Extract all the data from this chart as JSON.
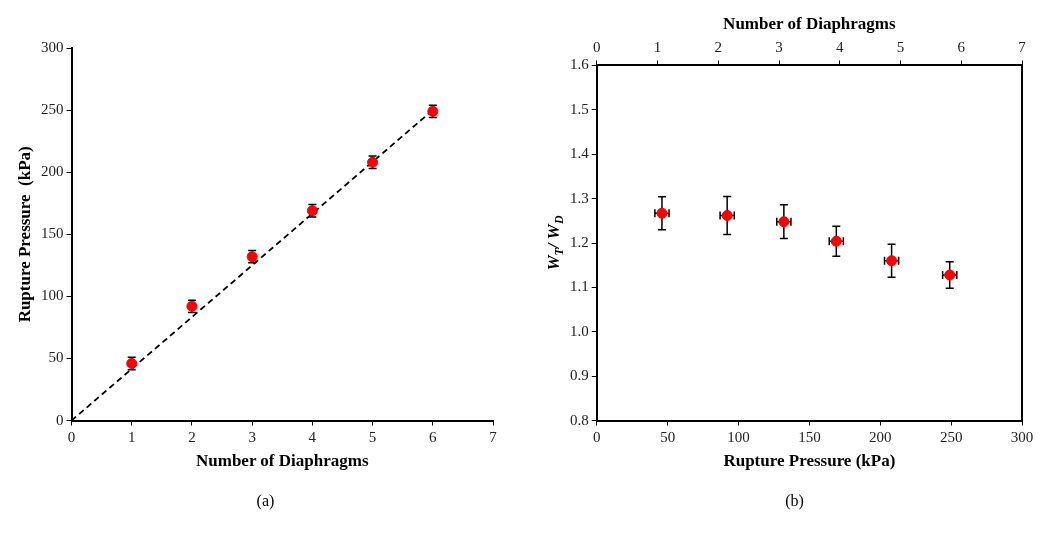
{
  "chart_data": [
    {
      "type": "scatter",
      "xlabel": "Number of Diaphragms",
      "ylabel": "Rupture Pressure  (kPa)",
      "xlim": [
        0,
        7
      ],
      "xticks": [
        0,
        1,
        2,
        3,
        4,
        5,
        6,
        7
      ],
      "ylim": [
        0,
        300
      ],
      "yticks": [
        0,
        50,
        100,
        150,
        200,
        250,
        300
      ],
      "grid": false,
      "legend": false,
      "annotations": [
        "(a)"
      ],
      "series": [
        {
          "color": "#ff0000",
          "marker": "circle",
          "x": [
            1,
            2,
            3,
            4,
            5,
            6
          ],
          "values": [
            46,
            92,
            132,
            169,
            208,
            249
          ],
          "errors": [
            5,
            5,
            5,
            5,
            5,
            5
          ]
        },
        {
          "type": "line",
          "color": "#000000",
          "x": [
            0,
            6
          ],
          "values": [
            0,
            250
          ],
          "line_style": "dashed"
        }
      ]
    },
    {
      "type": "scatter",
      "xlabel": "Rupture Pressure (kPa)",
      "ylabel": "W$_{T}$/ W$_{D}$",
      "x2label": "Number of Diaphragms",
      "xlim": [
        0,
        300
      ],
      "xticks": [
        0,
        50,
        100,
        150,
        200,
        250,
        300
      ],
      "x2lim": [
        0,
        7
      ],
      "x2ticks": [
        0,
        1,
        2,
        3,
        4,
        5,
        6,
        7
      ],
      "ylim": [
        0.8,
        1.6
      ],
      "yticks": [
        0.8,
        0.9,
        {
          "value": 1,
          "label": "1.0"
        },
        1.1,
        1.2,
        1.3,
        1.4,
        1.5,
        1.6
      ],
      "grid": false,
      "legend": false,
      "marker": "circle",
      "annotations": [
        "(b)"
      ],
      "series": [
        {
          "color": "#ff0000",
          "x": [
            46,
            92,
            132,
            169,
            208,
            249
          ],
          "values": [
            1.267,
            1.262,
            1.248,
            1.204,
            1.16,
            1.128
          ],
          "errors": [
            0.037,
            0.043,
            0.038,
            0.034,
            0.037,
            0.03
          ],
          "xerrors": [
            5,
            5,
            5,
            5,
            5,
            5
          ]
        }
      ]
    }
  ]
}
